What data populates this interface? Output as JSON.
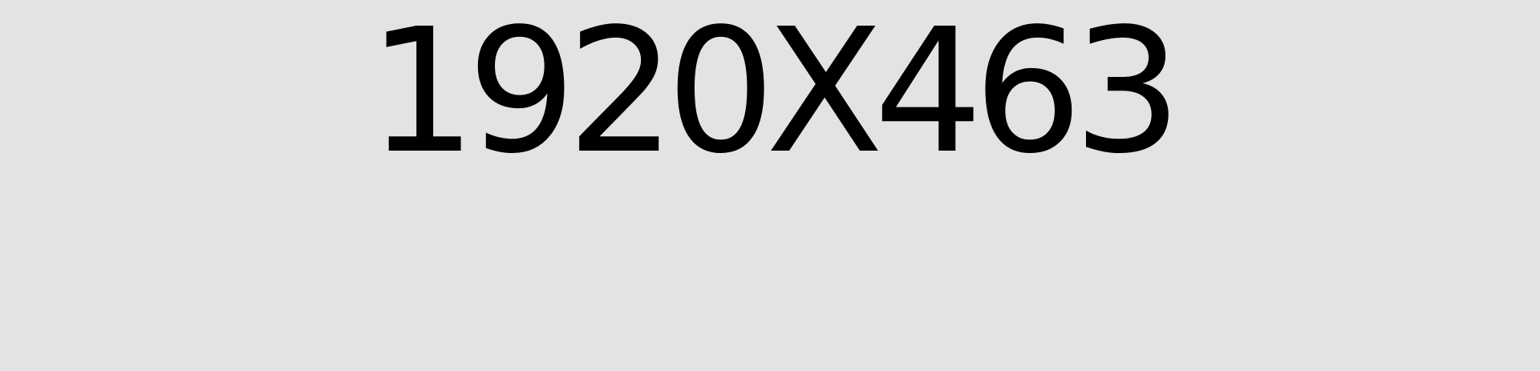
{
  "placeholder": {
    "text": "1920X463",
    "background_color": "#e3e3e3",
    "text_color": "#000000"
  }
}
